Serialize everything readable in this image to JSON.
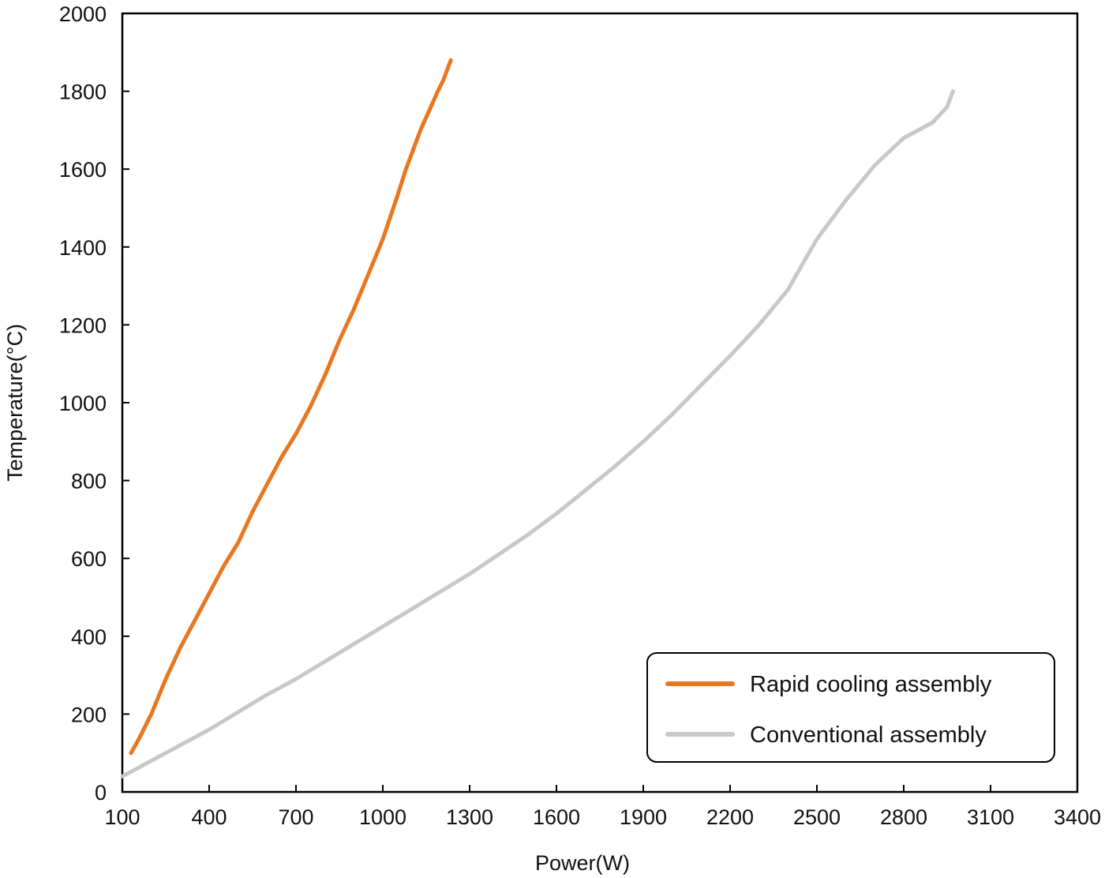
{
  "chart_data": {
    "type": "line",
    "title": "",
    "xlabel": "Power(W)",
    "ylabel": "Temperature(°C)",
    "xlim": [
      100,
      3400
    ],
    "ylim": [
      0,
      2000
    ],
    "xticks": [
      100,
      400,
      700,
      1000,
      1300,
      1600,
      1900,
      2200,
      2500,
      2800,
      3100,
      3400
    ],
    "yticks": [
      0,
      200,
      400,
      600,
      800,
      1000,
      1200,
      1400,
      1600,
      1800,
      2000
    ],
    "grid": false,
    "legend_position": "bottom-right",
    "series": [
      {
        "name": "Rapid cooling assembly",
        "color": "#E87722",
        "x": [
          130,
          160,
          200,
          250,
          300,
          350,
          400,
          450,
          500,
          550,
          600,
          650,
          700,
          750,
          800,
          850,
          900,
          950,
          1000,
          1050,
          1080,
          1100,
          1130,
          1160,
          1190,
          1210,
          1225,
          1235
        ],
        "y": [
          100,
          140,
          200,
          290,
          370,
          440,
          510,
          580,
          640,
          720,
          790,
          860,
          920,
          990,
          1070,
          1160,
          1240,
          1330,
          1420,
          1530,
          1600,
          1640,
          1700,
          1750,
          1800,
          1830,
          1860,
          1880
        ]
      },
      {
        "name": "Conventional assembly",
        "color": "#C8C8C8",
        "x": [
          100,
          200,
          300,
          400,
          500,
          600,
          700,
          800,
          900,
          1000,
          1100,
          1200,
          1300,
          1400,
          1500,
          1600,
          1700,
          1800,
          1900,
          2000,
          2100,
          2200,
          2300,
          2400,
          2430,
          2500,
          2600,
          2700,
          2800,
          2900,
          2950,
          2965,
          2970
        ],
        "y": [
          40,
          80,
          120,
          160,
          205,
          250,
          290,
          335,
          380,
          425,
          470,
          515,
          560,
          610,
          660,
          715,
          775,
          835,
          900,
          970,
          1045,
          1120,
          1200,
          1290,
          1330,
          1420,
          1520,
          1610,
          1680,
          1720,
          1760,
          1790,
          1800
        ]
      }
    ]
  }
}
